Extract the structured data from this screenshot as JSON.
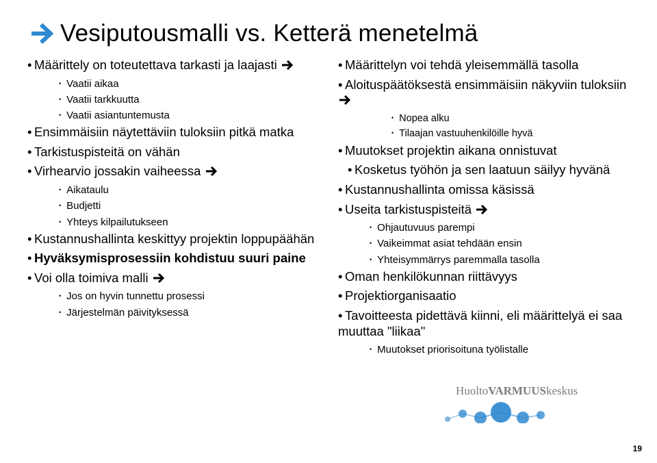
{
  "title": "Vesiputousmalli  vs.   Ketterä menetelmä",
  "arrow_color": "#2f8ad0",
  "page_number": "19",
  "left": {
    "items": [
      {
        "lvl": 1,
        "text": "Määrittely on toteutettava tarkasti ja laajasti ",
        "arrow": true
      },
      {
        "lvl": 2,
        "text": "Vaatii aikaa"
      },
      {
        "lvl": 2,
        "text": "Vaatii tarkkuutta"
      },
      {
        "lvl": 2,
        "text": "Vaatii asiantuntemusta"
      },
      {
        "lvl": 1,
        "text": "Ensimmäisiin näytettäviin tuloksiin pitkä matka"
      },
      {
        "lvl": 1,
        "text": "Tarkistuspisteitä on vähän"
      },
      {
        "lvl": 1,
        "text": "Virhearvio jossakin vaiheessa ",
        "arrow": true
      },
      {
        "lvl": 2,
        "text": "Aikataulu"
      },
      {
        "lvl": 2,
        "text": "Budjetti"
      },
      {
        "lvl": 2,
        "text": "Yhteys kilpailutukseen"
      },
      {
        "lvl": 1,
        "text": "Kustannushallinta keskittyy projektin loppupäähän"
      },
      {
        "lvl": 1,
        "text": "Hyväksymisprosessiin kohdistuu suuri paine",
        "bold": true
      },
      {
        "lvl": 1,
        "text": "Voi olla toimiva malli ",
        "arrow": true
      },
      {
        "lvl": 2,
        "text": "Jos on hyvin tunnettu prosessi"
      },
      {
        "lvl": 2,
        "text": "Järjestelmän päivityksessä"
      }
    ]
  },
  "right": {
    "items": [
      {
        "lvl": 1,
        "text": "Määrittelyn voi tehdä yleisemmällä tasolla"
      },
      {
        "lvl": 1,
        "text": "Aloituspäätöksestä ensimmäisiin näkyviin tuloksiin ",
        "arrow": true
      },
      {
        "lvl": 3,
        "text": "Nopea alku"
      },
      {
        "lvl": 3,
        "text": "Tilaajan vastuuhenkilöille hyvä"
      },
      {
        "lvl": 1,
        "text": "Muutokset projektin aikana onnistuvat"
      },
      {
        "lvl": 1,
        "text": "Kosketus työhön ja sen laatuun säilyy hyvänä",
        "pad": true
      },
      {
        "lvl": 1,
        "text": "Kustannushallinta omissa käsissä"
      },
      {
        "lvl": 1,
        "text": "Useita tarkistuspisteitä ",
        "arrow": true
      },
      {
        "lvl": 2,
        "text": "Ohjautuvuus parempi"
      },
      {
        "lvl": 2,
        "text": "Vaikeimmat asiat tehdään ensin"
      },
      {
        "lvl": 2,
        "text": "Yhteisymmärrys paremmalla tasolla"
      },
      {
        "lvl": 1,
        "text": "Oman henkilökunnan riittävyys"
      },
      {
        "lvl": 1,
        "text": "Projektiorganisaatio"
      },
      {
        "lvl": 1,
        "text": "Tavoitteesta pidettävä kiinni, eli määrittelyä ei saa muuttaa \"liikaa\""
      },
      {
        "lvl": 2,
        "text": "Muutokset priorisoituna työlistalle"
      }
    ]
  },
  "logo": {
    "text1": "Huolto",
    "text2": "VARMUUS",
    "text3": "keskus",
    "color_main": "#7d7d7d",
    "color_accent": "#2f8ad0"
  }
}
